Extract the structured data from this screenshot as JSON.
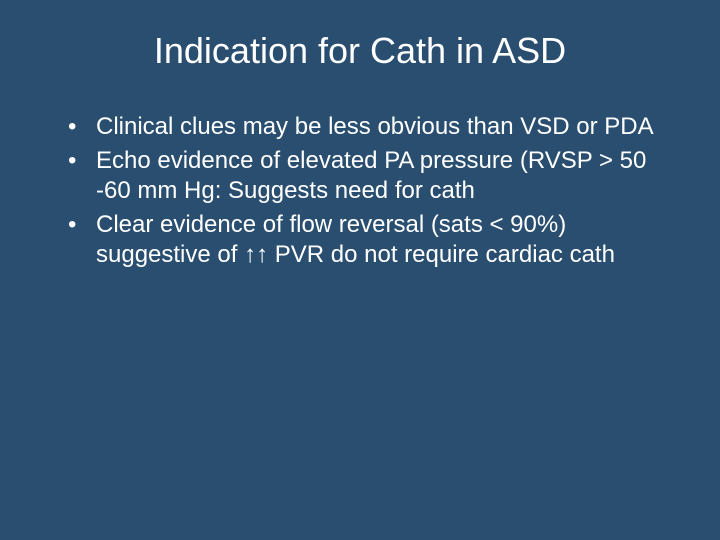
{
  "background_color": "#294e70",
  "text_color": "#ffffff",
  "font_family": "Arial",
  "title": {
    "text": "Indication for Cath in ASD",
    "fontsize": 36,
    "align": "center"
  },
  "bullets": {
    "fontsize": 24,
    "items": [
      "Clinical clues may be less obvious than VSD or PDA",
      "Echo evidence of elevated PA pressure (RVSP > 50 -60 mm Hg:  Suggests need for cath",
      "Clear evidence of flow reversal (sats < 90%) suggestive of ↑↑ PVR do not require cardiac cath"
    ]
  }
}
